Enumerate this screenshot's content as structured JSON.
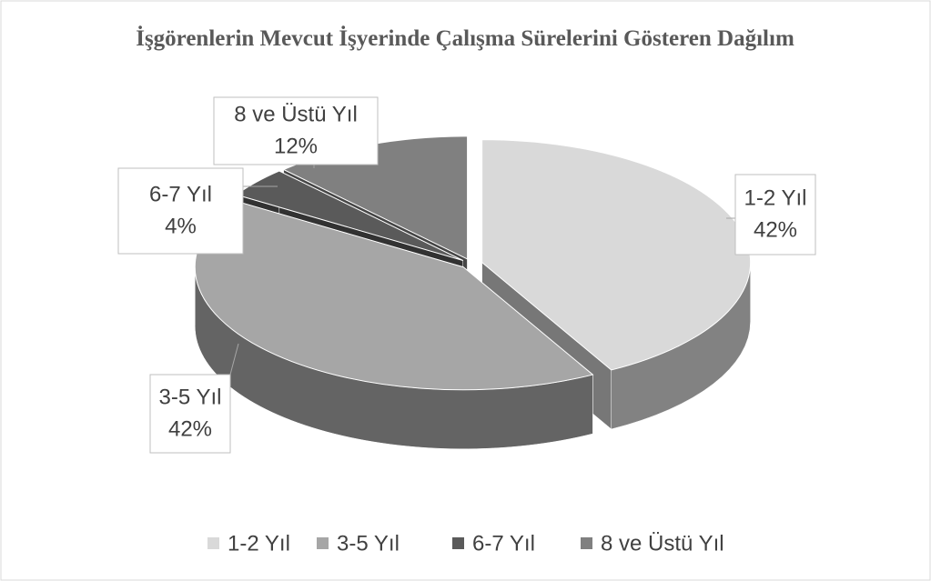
{
  "chart_data": {
    "type": "pie3d",
    "title": "İşgörenlerin Mevcut İşyerinde Çalışma Sürelerini Gösteren Dağılım",
    "categories": [
      "1-2 Yıl",
      "3-5 Yıl",
      "6-7 Yıl",
      "8 ve Üstü Yıl"
    ],
    "values": [
      42,
      42,
      4,
      12
    ],
    "value_labels": [
      "42%",
      "42%",
      "4%",
      "12%"
    ],
    "colors": [
      "#d9d9d9",
      "#a6a6a6",
      "#5a5a5a",
      "#808080"
    ],
    "legend": "bottom"
  }
}
